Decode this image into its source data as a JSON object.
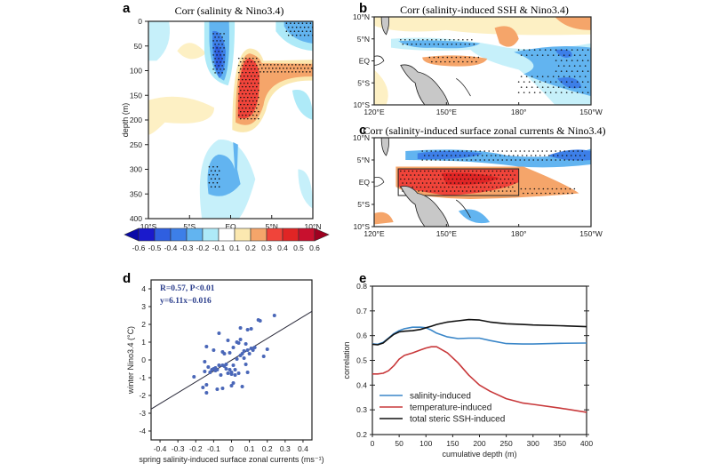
{
  "figure": {
    "panels": {
      "a": {
        "label": "a",
        "title": "Corr (salinity & Nino3.4)",
        "ylabel": "depth (m)",
        "yticks": [
          "0",
          "50",
          "100",
          "150",
          "200",
          "250",
          "300",
          "350",
          "400"
        ],
        "xticks": [
          "10°S",
          "5°S",
          "EQ",
          "5°N",
          "10°N"
        ]
      },
      "b": {
        "label": "b",
        "title": "Corr (salinity-induced SSH & Nino3.4)",
        "yticks": [
          "10°N",
          "5°N",
          "EQ",
          "5°S",
          "10°S"
        ],
        "xticks": [
          "120°E",
          "150°E",
          "180°",
          "150°W"
        ]
      },
      "c": {
        "label": "c",
        "title": "Corr (salinity-induced surface zonal currents & Nino3.4)",
        "yticks": [
          "10°N",
          "5°N",
          "EQ",
          "5°S",
          "10°S"
        ],
        "xticks": [
          "120°E",
          "150°E",
          "180°",
          "150°W"
        ]
      },
      "d": {
        "label": "d",
        "annot1": "R=0.57, P<0.01",
        "annot2": "y=6.11x−0.016"
      },
      "e": {
        "label": "e"
      }
    },
    "colorbar": {
      "labels": [
        "-0.6",
        "-0.5",
        "-0.4",
        "-0.3",
        "-0.2",
        "-0.1",
        "0.1",
        "0.2",
        "0.3",
        "0.4",
        "0.5",
        "0.6"
      ],
      "colors": [
        "#1a1acc",
        "#2f5fe0",
        "#3d7fe8",
        "#62b4f0",
        "#aeeaf8",
        "#ffffff",
        "#fbe8b0",
        "#f5a56a",
        "#f0443a",
        "#e02525",
        "#c8102e"
      ],
      "under_color": "#0a0aa8",
      "over_color": "#9e0020"
    }
  },
  "chart_data": [
    {
      "panel": "a",
      "type": "heatmap",
      "title": "Corr (salinity & Nino3.4)",
      "xlabel": "",
      "ylabel": "depth (m)",
      "xlim": [
        -10,
        10
      ],
      "ylim": [
        400,
        0
      ],
      "regions": [
        {
          "kind": "negative",
          "value": -0.4,
          "lat": [
            -1.8,
            -0.4
          ],
          "depth": [
            10,
            120
          ],
          "significant": true
        },
        {
          "kind": "positive",
          "value": 0.45,
          "lat": [
            1.2,
            3.5
          ],
          "depth": [
            60,
            240
          ],
          "significant": true
        },
        {
          "kind": "positive",
          "value": 0.25,
          "lat": [
            3.5,
            10
          ],
          "depth": [
            85,
            110
          ],
          "significant": true
        },
        {
          "kind": "negative",
          "value": -0.3,
          "lat": [
            6,
            10
          ],
          "depth": [
            0,
            50
          ],
          "significant": true
        },
        {
          "kind": "negative",
          "value": -0.25,
          "lat": [
            -3.5,
            0.5
          ],
          "depth": [
            260,
            360
          ],
          "significant": true
        }
      ]
    },
    {
      "panel": "b",
      "type": "heatmap",
      "title": "Corr (salinity-induced SSH & Nino3.4)",
      "xlim": [
        "120°E",
        "150°W"
      ],
      "ylim": [
        "10°S",
        "10°N"
      ],
      "regions": [
        {
          "kind": "positive",
          "value": 0.3,
          "lon": [
            142,
            162
          ],
          "lat": [
            -1,
            1
          ],
          "significant": true
        },
        {
          "kind": "negative",
          "value": -0.3,
          "lon": [
            130,
            165
          ],
          "lat": [
            3,
            5
          ],
          "significant": true
        },
        {
          "kind": "negative",
          "value": -0.35,
          "lon": [
            180,
            210
          ],
          "lat": [
            0,
            4
          ],
          "significant": true
        },
        {
          "kind": "negative",
          "value": -0.4,
          "lon": [
            180,
            210
          ],
          "lat": [
            -7,
            -3
          ],
          "significant": true
        }
      ]
    },
    {
      "panel": "c",
      "type": "heatmap",
      "title": "Corr (salinity-induced surface zonal currents & Nino3.4)",
      "xlim": [
        "120°E",
        "150°W"
      ],
      "ylim": [
        "10°S",
        "10°N"
      ],
      "box": {
        "lon": [
          130,
          180
        ],
        "lat": [
          -3,
          3
        ]
      },
      "regions": [
        {
          "kind": "positive",
          "value": 0.5,
          "lon": [
            130,
            180
          ],
          "lat": [
            -3,
            3
          ],
          "significant": true
        },
        {
          "kind": "negative",
          "value": -0.4,
          "lon": [
            140,
            210
          ],
          "lat": [
            4,
            7
          ],
          "significant": true
        },
        {
          "kind": "positive",
          "value": 0.25,
          "lon": [
            180,
            205
          ],
          "lat": [
            -2,
            0
          ],
          "significant": true
        }
      ]
    },
    {
      "panel": "d",
      "type": "scatter",
      "xlabel": "spring salinity-induced surface zonal currents (ms⁻¹)",
      "ylabel": "winter Nino3.4 (°C)",
      "xlim": [
        -0.45,
        0.45
      ],
      "ylim": [
        -4.5,
        4.5
      ],
      "xticks": [
        -0.4,
        -0.3,
        -0.2,
        -0.1,
        0,
        0.1,
        0.2,
        0.3,
        0.4
      ],
      "yticks": [
        -4,
        -3,
        -2,
        -1,
        0,
        1,
        2,
        3,
        4
      ],
      "xtick_labels": [
        "-0.4",
        "-0.3",
        "-0.2",
        "-0.1",
        "0",
        "0.1",
        "0.2",
        "0.3",
        "0.4"
      ],
      "ytick_labels": [
        "-4",
        "-3",
        "-2",
        "-1",
        "0",
        "1",
        "2",
        "3",
        "4"
      ],
      "regression": {
        "slope": 6.11,
        "intercept": -0.016,
        "R": 0.57,
        "P": "<0.01"
      },
      "points": [
        [
          -0.21,
          -0.95
        ],
        [
          -0.16,
          -1.55
        ],
        [
          -0.14,
          -1.85
        ],
        [
          -0.14,
          -1.4
        ],
        [
          -0.15,
          -0.1
        ],
        [
          -0.14,
          0.75
        ],
        [
          -0.15,
          -0.65
        ],
        [
          -0.13,
          -0.4
        ],
        [
          -0.12,
          -0.7
        ],
        [
          -0.11,
          -0.55
        ],
        [
          -0.1,
          0.55
        ],
        [
          -0.1,
          -0.5
        ],
        [
          -0.09,
          -0.6
        ],
        [
          -0.08,
          -1.65
        ],
        [
          -0.08,
          -0.55
        ],
        [
          -0.07,
          1.5
        ],
        [
          -0.07,
          -0.3
        ],
        [
          -0.06,
          -0.85
        ],
        [
          -0.05,
          0.45
        ],
        [
          -0.05,
          -1.6
        ],
        [
          -0.04,
          0.35
        ],
        [
          -0.04,
          -0.35
        ],
        [
          -0.03,
          -0.5
        ],
        [
          -0.03,
          -0.25
        ],
        [
          -0.02,
          1.1
        ],
        [
          -0.02,
          -0.75
        ],
        [
          -0.01,
          0.4
        ],
        [
          -0.01,
          -0.55
        ],
        [
          0.0,
          -0.7
        ],
        [
          0.0,
          -0.8
        ],
        [
          0.0,
          -1.45
        ],
        [
          0.01,
          -1.3
        ],
        [
          0.01,
          0.7
        ],
        [
          0.01,
          -0.3
        ],
        [
          0.02,
          -0.85
        ],
        [
          0.03,
          0.05
        ],
        [
          0.03,
          1.0
        ],
        [
          0.04,
          -0.75
        ],
        [
          0.04,
          0.95
        ],
        [
          0.05,
          1.15
        ],
        [
          0.05,
          1.8
        ],
        [
          0.05,
          0.25
        ],
        [
          0.06,
          0.35
        ],
        [
          0.06,
          -1.5
        ],
        [
          0.07,
          0.1
        ],
        [
          0.07,
          0.5
        ],
        [
          0.08,
          -0.25
        ],
        [
          0.08,
          0.9
        ],
        [
          0.09,
          0.55
        ],
        [
          0.09,
          -0.7
        ],
        [
          0.09,
          1.7
        ],
        [
          0.1,
          0.35
        ],
        [
          0.11,
          0.65
        ],
        [
          0.11,
          1.75
        ],
        [
          0.12,
          0.55
        ],
        [
          0.13,
          0.7
        ],
        [
          0.15,
          2.25
        ],
        [
          0.16,
          2.2
        ],
        [
          0.18,
          0.2
        ],
        [
          0.2,
          0.6
        ],
        [
          0.24,
          2.5
        ],
        [
          -0.05,
          -0.3
        ],
        [
          0.02,
          -0.55
        ],
        [
          -0.09,
          -0.45
        ]
      ]
    },
    {
      "panel": "e",
      "type": "line",
      "xlabel": "cumulative depth (m)",
      "ylabel": "correlation",
      "xlim": [
        0,
        400
      ],
      "ylim": [
        0.2,
        0.8
      ],
      "xticks": [
        0,
        50,
        100,
        150,
        200,
        250,
        300,
        350,
        400
      ],
      "yticks": [
        0.2,
        0.3,
        0.4,
        0.5,
        0.6,
        0.7,
        0.8
      ],
      "xtick_labels": [
        "0",
        "50",
        "100",
        "150",
        "200",
        "250",
        "300",
        "350",
        "400"
      ],
      "ytick_labels": [
        "0.2",
        "0.3",
        "0.4",
        "0.5",
        "0.6",
        "0.7",
        "0.8"
      ],
      "legend_position": "bottom-left",
      "x": [
        0,
        10,
        20,
        30,
        40,
        50,
        60,
        75,
        90,
        100,
        110,
        120,
        140,
        160,
        180,
        200,
        220,
        250,
        280,
        300,
        350,
        400
      ],
      "series": [
        {
          "name": "salinity-induced",
          "color": "#3a86c8",
          "values": [
            0.567,
            0.565,
            0.573,
            0.59,
            0.608,
            0.62,
            0.628,
            0.634,
            0.634,
            0.632,
            0.622,
            0.61,
            0.595,
            0.588,
            0.59,
            0.59,
            0.58,
            0.568,
            0.566,
            0.566,
            0.569,
            0.57
          ]
        },
        {
          "name": "temperature-induced",
          "color": "#c8383a",
          "values": [
            0.445,
            0.445,
            0.448,
            0.458,
            0.478,
            0.505,
            0.52,
            0.53,
            0.542,
            0.55,
            0.555,
            0.555,
            0.53,
            0.49,
            0.44,
            0.4,
            0.375,
            0.345,
            0.328,
            0.322,
            0.307,
            0.29
          ]
        },
        {
          "name": "total steric SSH-induced",
          "color": "#111111",
          "values": [
            0.565,
            0.563,
            0.57,
            0.588,
            0.605,
            0.615,
            0.618,
            0.62,
            0.625,
            0.632,
            0.638,
            0.645,
            0.655,
            0.66,
            0.665,
            0.663,
            0.655,
            0.648,
            0.645,
            0.643,
            0.64,
            0.636
          ]
        }
      ]
    }
  ]
}
